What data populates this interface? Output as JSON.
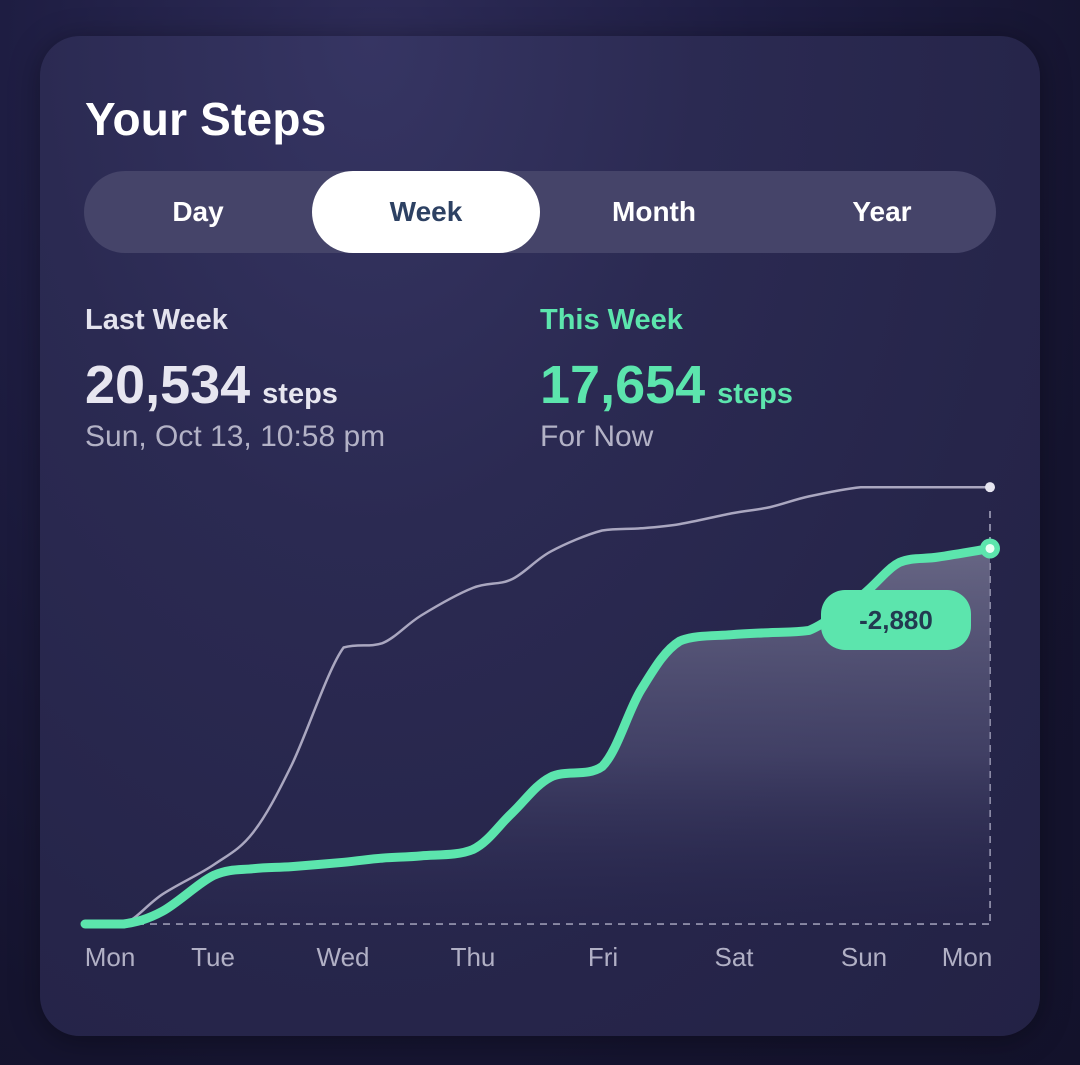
{
  "title": "Your Steps",
  "tabs": [
    {
      "label": "Day",
      "active": false
    },
    {
      "label": "Week",
      "active": true
    },
    {
      "label": "Month",
      "active": false
    },
    {
      "label": "Year",
      "active": false
    }
  ],
  "last_week": {
    "label": "Last Week",
    "value": "20,534",
    "unit": "steps",
    "subtitle": "Sun, Oct 13, 10:58 pm"
  },
  "this_week": {
    "label": "This Week",
    "value": "17,654",
    "unit": "steps",
    "subtitle": "For Now"
  },
  "difference": "-2,880",
  "colors": {
    "accent": "#5ce5ad",
    "last_week_line": "#aaa7c0",
    "card": "#2b2a52"
  },
  "chart_data": {
    "type": "line",
    "x_ticks": [
      "Mon",
      "Tue",
      "Wed",
      "Thu",
      "Fri",
      "Sat",
      "Sun",
      "Mon"
    ],
    "series": [
      {
        "name": "Last Week",
        "x": [
          0.0,
          0.3,
          0.6,
          1.0,
          1.3,
          1.6,
          2.0,
          2.3,
          2.6,
          3.0,
          3.3,
          3.6,
          4.0,
          4.3,
          4.6,
          5.0,
          5.3,
          5.6,
          6.0,
          6.3,
          6.6,
          7.0
        ],
        "y": [
          0,
          0,
          1400,
          2800,
          4300,
          7500,
          13000,
          13200,
          14500,
          15800,
          16200,
          17500,
          18500,
          18600,
          18800,
          19300,
          19600,
          20100,
          20534,
          20534,
          20534,
          20534
        ]
      },
      {
        "name": "This Week",
        "x": [
          0.0,
          0.3,
          0.6,
          1.0,
          1.3,
          1.6,
          2.0,
          2.3,
          2.6,
          3.0,
          3.3,
          3.6,
          4.0,
          4.3,
          4.6,
          5.0,
          5.3,
          5.6,
          6.0,
          6.3,
          6.6,
          7.0
        ],
        "y": [
          0,
          0,
          600,
          2300,
          2600,
          2700,
          2900,
          3100,
          3200,
          3500,
          5200,
          6900,
          7400,
          11000,
          13300,
          13600,
          13700,
          13800,
          15400,
          17000,
          17250,
          17654
        ]
      }
    ],
    "ylim": [
      0,
      22000
    ],
    "grid": false,
    "legend": "none"
  }
}
